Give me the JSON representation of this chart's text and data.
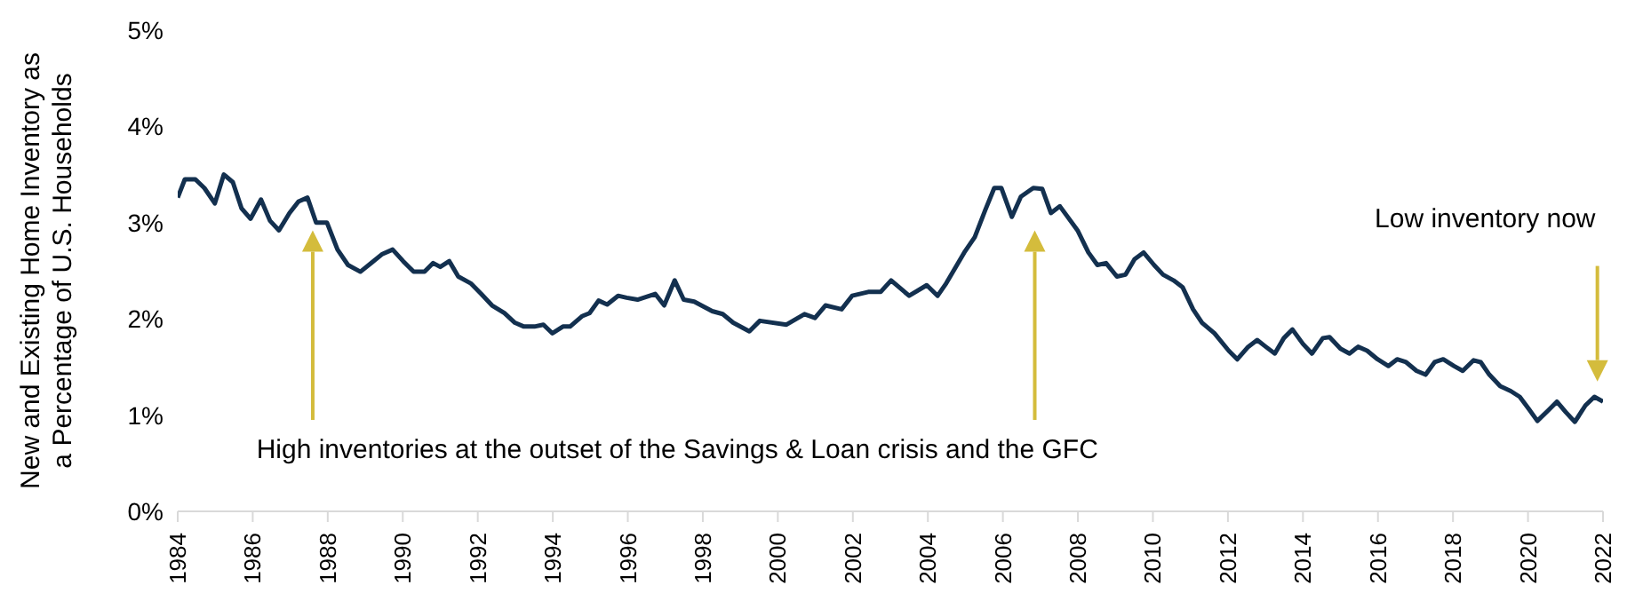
{
  "chart_data": {
    "type": "line",
    "ylabel": "New and Existing Home Inventory as a Percentage of U.S. Households",
    "annotations": [
      "High inventories at the outset of the Savings & Loan crisis and the GFC",
      "Low inventory now"
    ],
    "x": [
      1984.0,
      1984.19,
      1984.47,
      1984.71,
      1984.99,
      1985.23,
      1985.47,
      1985.7,
      1985.94,
      1986.22,
      1986.46,
      1986.7,
      1986.98,
      1987.22,
      1987.46,
      1987.69,
      1987.98,
      1988.26,
      1988.54,
      1988.87,
      1989.16,
      1989.44,
      1989.73,
      1990.01,
      1990.29,
      1990.58,
      1990.81,
      1991.0,
      1991.24,
      1991.48,
      1991.81,
      1992.09,
      1992.38,
      1992.71,
      1992.99,
      1993.23,
      1993.51,
      1993.75,
      1993.99,
      1994.27,
      1994.46,
      1994.79,
      1994.98,
      1995.22,
      1995.45,
      1995.74,
      1995.97,
      1996.26,
      1996.73,
      1996.97,
      1997.25,
      1997.49,
      1997.77,
      1998.25,
      1998.53,
      1998.81,
      1999.24,
      1999.52,
      2000.23,
      2000.71,
      2000.99,
      2001.27,
      2001.7,
      2001.98,
      2002.41,
      2002.74,
      2003.02,
      2003.5,
      2003.97,
      2004.26,
      2004.49,
      2004.97,
      2005.25,
      2005.53,
      2005.77,
      2005.96,
      2006.24,
      2006.48,
      2006.81,
      2007.05,
      2007.28,
      2007.52,
      2007.99,
      2008.28,
      2008.52,
      2008.75,
      2009.04,
      2009.27,
      2009.51,
      2009.75,
      2010.03,
      2010.27,
      2010.55,
      2010.79,
      2011.07,
      2011.31,
      2011.64,
      2012.02,
      2012.25,
      2012.54,
      2012.78,
      2013.01,
      2013.25,
      2013.49,
      2013.72,
      2014.0,
      2014.24,
      2014.53,
      2014.71,
      2015.0,
      2015.24,
      2015.47,
      2015.71,
      2015.99,
      2016.28,
      2016.51,
      2016.75,
      2017.03,
      2017.27,
      2017.51,
      2017.74,
      2018.03,
      2018.26,
      2018.55,
      2018.74,
      2018.97,
      2019.26,
      2019.54,
      2019.78,
      2020.01,
      2020.25,
      2020.54,
      2020.77,
      2021.01,
      2021.25,
      2021.53,
      2021.77,
      2022.0
    ],
    "series": [
      {
        "color": "#13304f",
        "values": [
          3.26,
          3.45,
          3.45,
          3.36,
          3.2,
          3.5,
          3.42,
          3.15,
          3.04,
          3.24,
          3.02,
          2.92,
          3.1,
          3.22,
          3.26,
          3.0,
          3.0,
          2.72,
          2.56,
          2.49,
          2.58,
          2.67,
          2.72,
          2.6,
          2.49,
          2.49,
          2.58,
          2.54,
          2.6,
          2.44,
          2.37,
          2.26,
          2.14,
          2.06,
          1.96,
          1.92,
          1.92,
          1.94,
          1.85,
          1.92,
          1.92,
          2.03,
          2.06,
          2.19,
          2.15,
          2.24,
          2.22,
          2.2,
          2.26,
          2.14,
          2.4,
          2.2,
          2.18,
          2.08,
          2.05,
          1.96,
          1.87,
          1.98,
          1.94,
          2.05,
          2.01,
          2.14,
          2.1,
          2.24,
          2.28,
          2.28,
          2.4,
          2.24,
          2.35,
          2.24,
          2.37,
          2.69,
          2.85,
          3.13,
          3.36,
          3.36,
          3.06,
          3.27,
          3.36,
          3.35,
          3.1,
          3.17,
          2.92,
          2.69,
          2.56,
          2.58,
          2.44,
          2.46,
          2.62,
          2.69,
          2.56,
          2.46,
          2.4,
          2.33,
          2.1,
          1.96,
          1.85,
          1.67,
          1.58,
          1.71,
          1.78,
          1.71,
          1.64,
          1.8,
          1.89,
          1.74,
          1.64,
          1.8,
          1.81,
          1.69,
          1.64,
          1.71,
          1.67,
          1.58,
          1.51,
          1.58,
          1.55,
          1.46,
          1.42,
          1.55,
          1.58,
          1.51,
          1.46,
          1.57,
          1.55,
          1.42,
          1.3,
          1.25,
          1.19,
          1.07,
          0.94,
          1.05,
          1.14,
          1.03,
          0.93,
          1.1,
          1.19,
          1.14
        ]
      }
    ],
    "xlim": [
      1984,
      2022
    ],
    "xticks": [
      1984,
      1986,
      1988,
      1990,
      1992,
      1994,
      1996,
      1998,
      2000,
      2002,
      2004,
      2006,
      2008,
      2010,
      2012,
      2014,
      2016,
      2018,
      2020,
      2022
    ],
    "ylim": [
      0,
      5
    ],
    "yticks": [
      {
        "value": 0,
        "label": "0%"
      },
      {
        "value": 1,
        "label": "1%"
      },
      {
        "value": 2,
        "label": "2%"
      },
      {
        "value": 3,
        "label": "3%"
      },
      {
        "value": 4,
        "label": "4%"
      },
      {
        "value": 5,
        "label": "5%"
      }
    ],
    "grid": false,
    "marker": "none",
    "line_style": "solid"
  }
}
